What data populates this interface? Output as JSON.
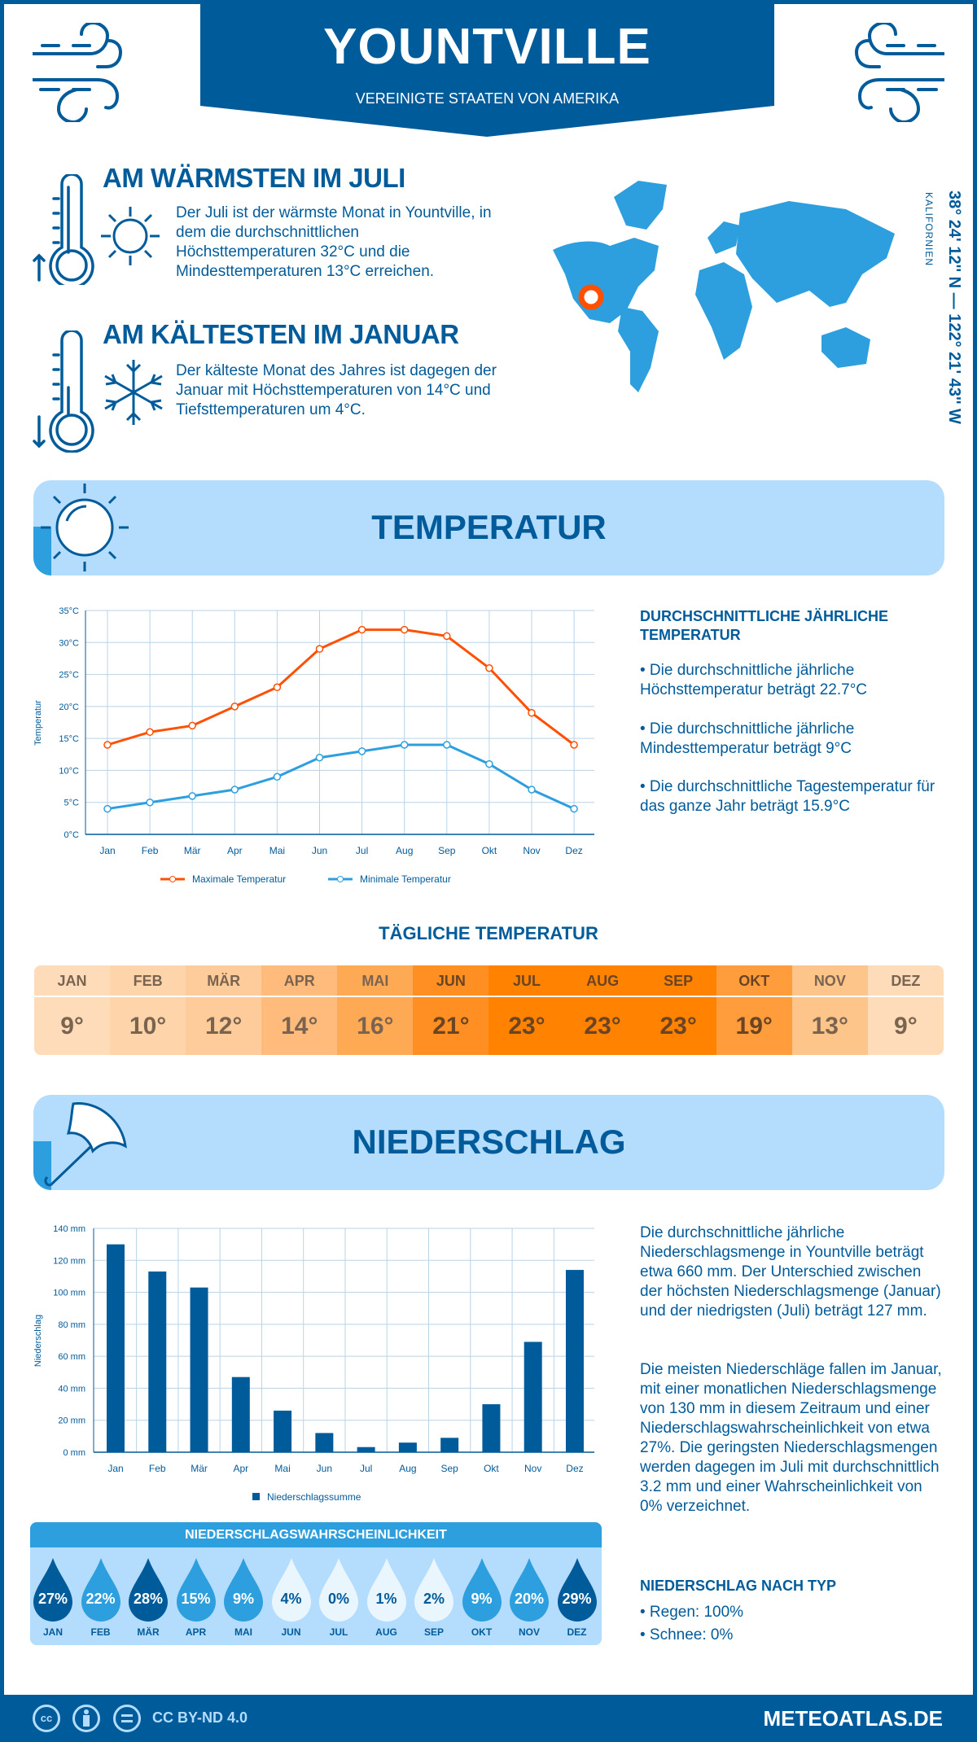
{
  "header": {
    "title": "YOUNTVILLE",
    "subtitle": "VEREINIGTE STAATEN VON AMERIKA"
  },
  "warmest": {
    "heading": "AM WÄRMSTEN IM JULI",
    "text": "Der Juli ist der wärmste Monat in Yountville, in dem die durchschnittlichen Höchsttemperaturen 32°C und die Mindesttemperaturen 13°C erreichen."
  },
  "coldest": {
    "heading": "AM KÄLTESTEN IM JANUAR",
    "text": "Der kälteste Monat des Jahres ist dagegen der Januar mit Höchsttemperaturen von 14°C und Tiefsttemperaturen um 4°C."
  },
  "location": {
    "coordinates": "38° 24' 12'' N — 122° 21' 43'' W",
    "region": "KALIFORNIEN",
    "marker_color": "#ff4f00"
  },
  "colors": {
    "dark_blue": "#005b9a",
    "mid_blue": "#2e9fde",
    "light_blue": "#b3dcfd",
    "max_line": "#ff4f00",
    "min_line": "#2e9fde"
  },
  "temperature": {
    "title": "TEMPERATUR",
    "annual_heading": "DURCHSCHNITTLICHE JÄHRLICHE TEMPERATUR",
    "bullets": [
      "• Die durchschnittliche jährliche Höchsttemperatur beträgt 22.7°C",
      "• Die durchschnittliche jährliche Mindesttemperatur beträgt 9°C",
      "• Die durchschnittliche Tagestemperatur für das ganze Jahr beträgt 15.9°C"
    ]
  },
  "daily": {
    "title": "TÄGLICHE TEMPERATUR",
    "items": [
      {
        "m": "JAN",
        "v": "9°",
        "c": "#fedcb9"
      },
      {
        "m": "FEB",
        "v": "10°",
        "c": "#fed5ab"
      },
      {
        "m": "MÄR",
        "v": "12°",
        "c": "#fecc9b"
      },
      {
        "m": "APR",
        "v": "14°",
        "c": "#febb7b"
      },
      {
        "m": "MAI",
        "v": "16°",
        "c": "#feaa55"
      },
      {
        "m": "JUN",
        "v": "21°",
        "c": "#ff8e23"
      },
      {
        "m": "JUL",
        "v": "23°",
        "c": "#ff8300"
      },
      {
        "m": "AUG",
        "v": "23°",
        "c": "#ff8300"
      },
      {
        "m": "SEP",
        "v": "23°",
        "c": "#ff8300"
      },
      {
        "m": "OKT",
        "v": "19°",
        "c": "#ff9d3d"
      },
      {
        "m": "NOV",
        "v": "13°",
        "c": "#fec58a"
      },
      {
        "m": "DEZ",
        "v": "9°",
        "c": "#fedcb9"
      }
    ]
  },
  "precipitation": {
    "title": "NIEDERSCHLAG",
    "para1": "Die durchschnittliche jährliche Niederschlagsmenge in Yountville beträgt etwa 660 mm. Der Unterschied zwischen der höchsten Niederschlagsmenge (Januar) und der niedrigsten (Juli) beträgt 127 mm.",
    "para2": "Die meisten Niederschläge fallen im Januar, mit einer monatlichen Niederschlagsmenge von 130 mm in diesem Zeitraum und einer Niederschlagswahrscheinlichkeit von etwa 27%. Die geringsten Niederschlagsmengen werden dagegen im Juli mit durchschnittlich 3.2 mm und einer Wahrscheinlichkeit von 0% verzeichnet.",
    "type_heading": "NIEDERSCHLAG NACH TYP",
    "types": [
      "• Regen: 100%",
      "• Schnee: 0%"
    ],
    "prob_title": "NIEDERSCHLAGSWAHRSCHEINLICHKEIT",
    "prob": [
      {
        "m": "JAN",
        "v": "27%",
        "level": "high"
      },
      {
        "m": "FEB",
        "v": "22%",
        "level": "mid"
      },
      {
        "m": "MÄR",
        "v": "28%",
        "level": "high"
      },
      {
        "m": "APR",
        "v": "15%",
        "level": "mid"
      },
      {
        "m": "MAI",
        "v": "9%",
        "level": "mid"
      },
      {
        "m": "JUN",
        "v": "4%",
        "level": "low"
      },
      {
        "m": "JUL",
        "v": "0%",
        "level": "low"
      },
      {
        "m": "AUG",
        "v": "1%",
        "level": "low"
      },
      {
        "m": "SEP",
        "v": "2%",
        "level": "low"
      },
      {
        "m": "OKT",
        "v": "9%",
        "level": "mid"
      },
      {
        "m": "NOV",
        "v": "20%",
        "level": "mid"
      },
      {
        "m": "DEZ",
        "v": "29%",
        "level": "high"
      }
    ]
  },
  "footer": {
    "license": "CC BY-ND 4.0",
    "site": "METEOATLAS.DE",
    "cc": "cc"
  },
  "chart_data": [
    {
      "type": "line",
      "categories": [
        "Jan",
        "Feb",
        "Mär",
        "Apr",
        "Mai",
        "Jun",
        "Jul",
        "Aug",
        "Sep",
        "Okt",
        "Nov",
        "Dez"
      ],
      "ylabel": "Temperatur",
      "ylim": [
        0,
        35
      ],
      "yticks": [
        "0°C",
        "5°C",
        "10°C",
        "15°C",
        "20°C",
        "25°C",
        "30°C",
        "35°C"
      ],
      "grid": true,
      "legend": "bottom",
      "series": [
        {
          "name": "Maximale Temperatur",
          "values": [
            14,
            16,
            17,
            20,
            23,
            29,
            32,
            32,
            31,
            26,
            19,
            14
          ],
          "color": "#ff4f00"
        },
        {
          "name": "Minimale Temperatur",
          "values": [
            4,
            5,
            6,
            7,
            9,
            12,
            13,
            14,
            14,
            11,
            7,
            4
          ],
          "color": "#2e9fde"
        }
      ]
    },
    {
      "type": "bar",
      "categories": [
        "Jan",
        "Feb",
        "Mär",
        "Apr",
        "Mai",
        "Jun",
        "Jul",
        "Aug",
        "Sep",
        "Okt",
        "Nov",
        "Dez"
      ],
      "ylabel": "Niederschlag",
      "ylim": [
        0,
        140
      ],
      "yticks": [
        "0 mm",
        "20 mm",
        "40 mm",
        "60 mm",
        "80 mm",
        "100 mm",
        "120 mm",
        "140 mm"
      ],
      "grid": true,
      "legend": "bottom",
      "series": [
        {
          "name": "Niederschlagssumme",
          "values": [
            130,
            113,
            103,
            47,
            26,
            12,
            3.2,
            6,
            9,
            30,
            69,
            114
          ],
          "color": "#005b9a"
        }
      ]
    }
  ]
}
